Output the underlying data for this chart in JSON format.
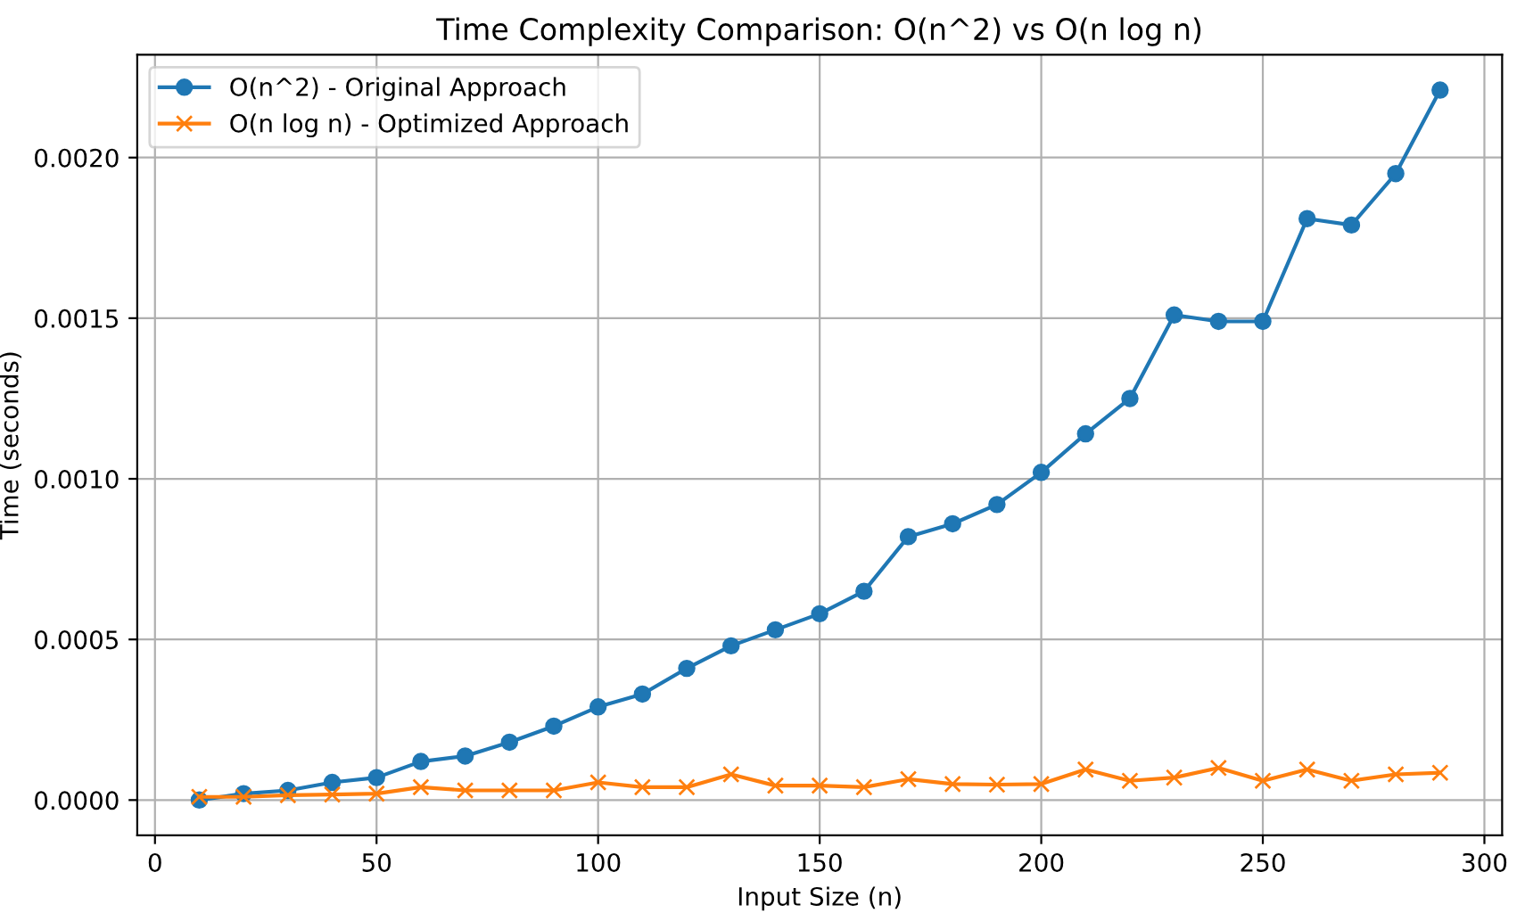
{
  "chart_data": {
    "type": "line",
    "title": "Time Complexity Comparison: O(n^2) vs O(n log n)",
    "xlabel": "Input Size (n)",
    "ylabel": "Time (seconds)",
    "x": [
      10,
      20,
      30,
      40,
      50,
      60,
      70,
      80,
      90,
      100,
      110,
      120,
      130,
      140,
      150,
      160,
      170,
      180,
      190,
      200,
      210,
      220,
      230,
      240,
      250,
      260,
      270,
      280,
      290
    ],
    "series": [
      {
        "name": "O(n^2) - Original Approach",
        "color": "#1f77b4",
        "marker": "circle",
        "values": [
          0.0,
          2e-05,
          3e-05,
          5.5e-05,
          7e-05,
          0.00012,
          0.000137,
          0.00018,
          0.00023,
          0.00029,
          0.00033,
          0.00041,
          0.00048,
          0.00053,
          0.00058,
          0.00065,
          0.00082,
          0.00086,
          0.00092,
          0.00102,
          0.00114,
          0.00125,
          0.00151,
          0.00149,
          0.00149,
          0.00181,
          0.00179,
          0.00195,
          0.00221
        ]
      },
      {
        "name": "O(n log n) - Optimized Approach",
        "color": "#ff7f0e",
        "marker": "cross",
        "values": [
          1e-05,
          1e-05,
          1.5e-05,
          1.7e-05,
          2e-05,
          4e-05,
          3e-05,
          3e-05,
          3e-05,
          5.5e-05,
          4e-05,
          4e-05,
          8e-05,
          4.5e-05,
          4.5e-05,
          4e-05,
          6.5e-05,
          5e-05,
          4.8e-05,
          5e-05,
          9.5e-05,
          6e-05,
          7e-05,
          0.0001,
          6e-05,
          9.5e-05,
          6e-05,
          8e-05,
          8.5e-05
        ]
      }
    ],
    "xlim": [
      -4,
      304
    ],
    "xticks": [
      0,
      50,
      100,
      150,
      200,
      250,
      300
    ],
    "ylim": [
      -0.00011,
      0.00232
    ],
    "yticks": [
      {
        "value": 0,
        "label": "0.0000"
      },
      {
        "value": 0.0005,
        "label": "0.0005"
      },
      {
        "value": 0.001,
        "label": "0.0010"
      },
      {
        "value": 0.0015,
        "label": "0.0015"
      },
      {
        "value": 0.002,
        "label": "0.0020"
      }
    ],
    "grid": true,
    "legend": "top left",
    "line_style": "solid"
  }
}
